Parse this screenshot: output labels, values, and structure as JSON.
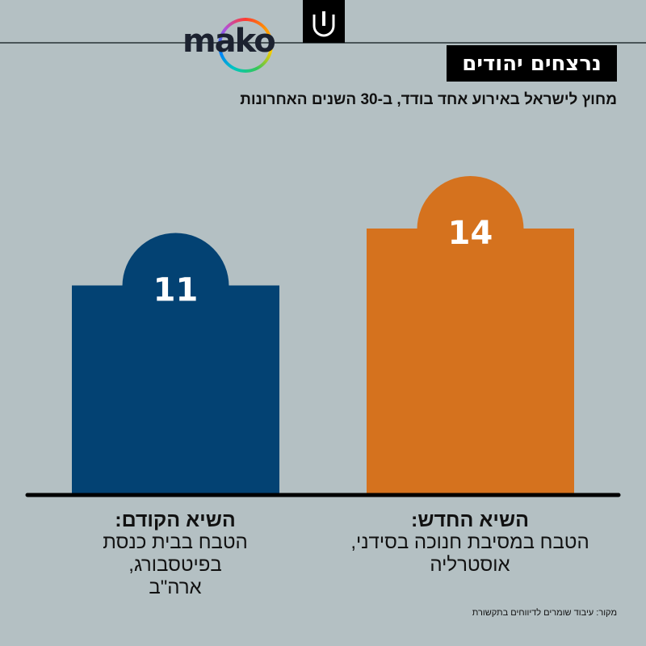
{
  "header": {
    "logo_text": "mako",
    "title": "נרצחים יהודים",
    "subtitle": "מחוץ לישראל באירוע אחד בודד, ב-30 השנים האחרונות"
  },
  "chart_data": {
    "type": "bar",
    "title": "נרצחים יהודים",
    "subtitle": "מחוץ לישראל באירוע אחד בודד, ב-30 השנים האחרונות",
    "categories": [
      {
        "title": "השיא הקודם:",
        "desc1": "הטבח בבית כנסת בפיטסבורג,",
        "desc2": "ארה\"ב"
      },
      {
        "title": "השיא החדש:",
        "desc1": "הטבח במסיבת חנוכה בסידני,",
        "desc2": "אוסטרליה"
      }
    ],
    "values": [
      11,
      14
    ],
    "value_labels": [
      "11",
      "14"
    ],
    "colors": [
      "#034273",
      "#d5721e"
    ],
    "ylim": [
      0,
      14
    ]
  },
  "footer": {
    "source": "מקור: עיבוד שומרים לדיווחים בתקשורת"
  }
}
